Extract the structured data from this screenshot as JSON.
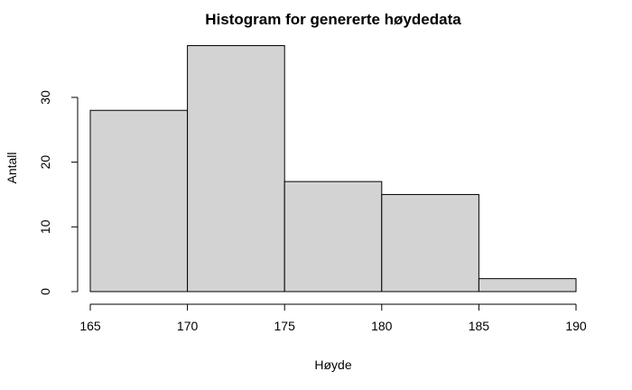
{
  "chart_data": {
    "type": "bar",
    "title": "Histogram for genererte høydedata",
    "xlabel": "Høyde",
    "ylabel": "Antall",
    "bins": [
      {
        "start": 165,
        "end": 170,
        "count": 28
      },
      {
        "start": 170,
        "end": 175,
        "count": 38
      },
      {
        "start": 175,
        "end": 180,
        "count": 17
      },
      {
        "start": 180,
        "end": 185,
        "count": 15
      },
      {
        "start": 185,
        "end": 190,
        "count": 2
      }
    ],
    "xlim": [
      165,
      190
    ],
    "ylim": [
      0,
      38
    ],
    "x_ticks": [
      "165",
      "170",
      "175",
      "180",
      "185",
      "190"
    ],
    "y_ticks": [
      "0",
      "10",
      "20",
      "30"
    ],
    "grid": false,
    "bar_color": "#d3d3d3",
    "edge_color": "#000000"
  }
}
